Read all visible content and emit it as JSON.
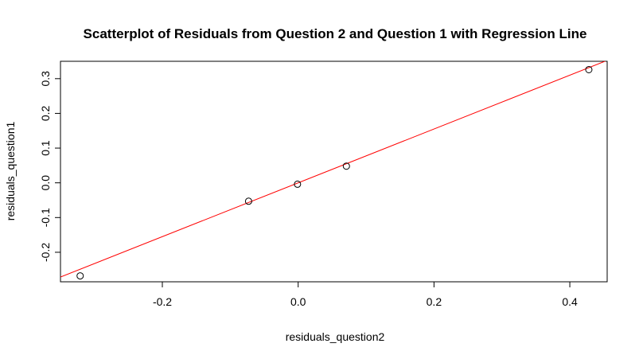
{
  "chart_data": {
    "type": "scatter",
    "title": "Scatterplot of Residuals from Question 2 and Question 1 with Regression Line",
    "xlabel": "residuals_question2",
    "ylabel": "residuals_question1",
    "xlim": [
      -0.35,
      0.455
    ],
    "ylim": [
      -0.285,
      0.35
    ],
    "x_ticks": [
      -0.2,
      0.0,
      0.2,
      0.4
    ],
    "x_tick_labels": [
      "-0.2",
      "0.0",
      "0.2",
      "0.4"
    ],
    "y_ticks": [
      -0.2,
      -0.1,
      0.0,
      0.1,
      0.2,
      0.3
    ],
    "y_tick_labels": [
      "-0.2",
      "-0.1",
      "0.0",
      "0.1",
      "0.2",
      "0.3"
    ],
    "points": [
      {
        "x": -0.321,
        "y": -0.268
      },
      {
        "x": -0.073,
        "y": -0.053
      },
      {
        "x": -0.001,
        "y": -0.004
      },
      {
        "x": 0.071,
        "y": 0.048
      },
      {
        "x": 0.428,
        "y": 0.326
      }
    ],
    "regression_line": {
      "intercept": 0.0,
      "slope": 0.775,
      "color": "#ff0000"
    },
    "point_color": "#000000",
    "grid": false,
    "legend": "none"
  }
}
